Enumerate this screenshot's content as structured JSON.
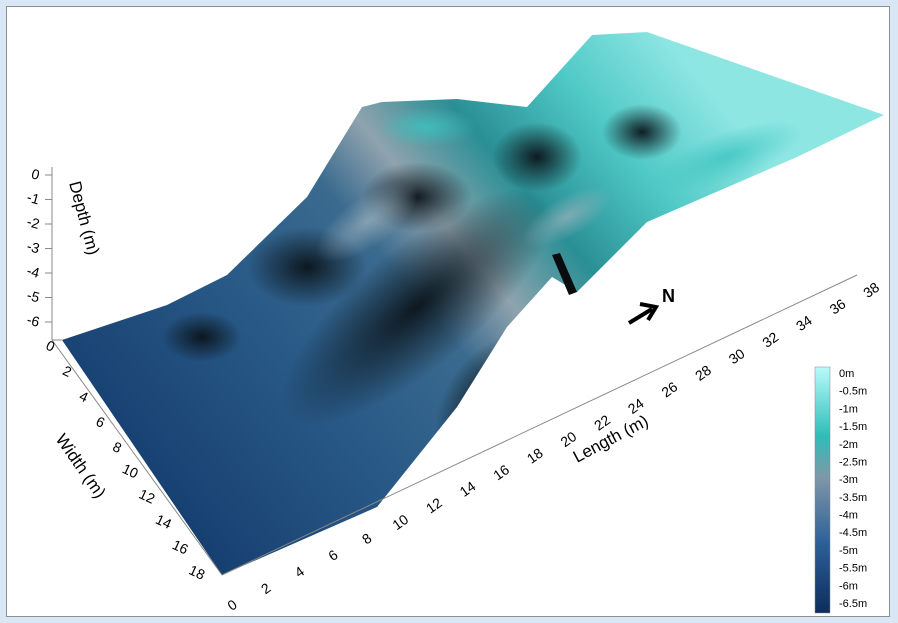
{
  "chart_data": {
    "type": "surface",
    "axes": {
      "length": {
        "label": "Length (m)",
        "ticks": [
          "0",
          "2",
          "4",
          "6",
          "8",
          "10",
          "12",
          "14",
          "16",
          "18",
          "20",
          "22",
          "24",
          "26",
          "28",
          "30",
          "32",
          "34",
          "36",
          "38"
        ],
        "range": [
          0,
          38
        ]
      },
      "width": {
        "label": "Width (m)",
        "ticks": [
          "0",
          "2",
          "4",
          "6",
          "8",
          "10",
          "12",
          "14",
          "16",
          "18"
        ],
        "range": [
          0,
          18
        ]
      },
      "depth": {
        "label": "Depth (m)",
        "ticks": [
          "0",
          "-1",
          "-2",
          "-3",
          "-4",
          "-5",
          "-6"
        ],
        "range": [
          -6.5,
          0
        ]
      }
    },
    "colorbar": {
      "labels": [
        "0m",
        "-0.5m",
        "-1m",
        "-1.5m",
        "-2m",
        "-2.5m",
        "-3m",
        "-3.5m",
        "-4m",
        "-4.5m",
        "-5m",
        "-5.5m",
        "-6m",
        "-6.5m"
      ],
      "colors": [
        "#b8fbfb",
        "#2fbdb7",
        "#7f97a8",
        "#2c5f97",
        "#0c2d5c"
      ]
    },
    "north_label": "N",
    "surface_colors": {
      "deep": "#163f70",
      "mid": "#3d6f94",
      "dark": "#0e1a1f",
      "gray": "#8fa3ae",
      "teal": "#2eb0ad",
      "light": "#78dcd9"
    }
  }
}
